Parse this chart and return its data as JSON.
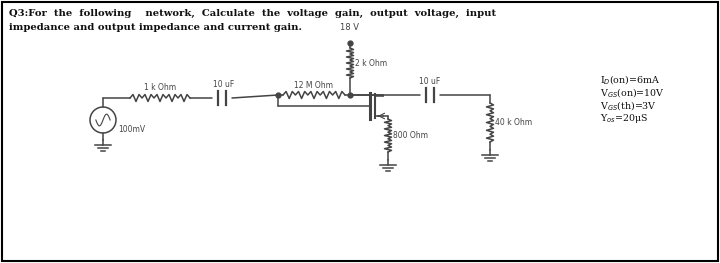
{
  "title_line1": "Q3:For  the  following    network,  Calculate  the  voltage  gain,  output  voltage,  input",
  "title_line2": "impedance and output impedance and current gain.",
  "bg_color": "#ffffff",
  "border_color": "#000000",
  "circuit_color": "#555555",
  "text_color": "#000000",
  "params_display": [
    "I$_D$(on)=6mA",
    "V$_{GS}$(on)=10V",
    "V$_{GS}$(th)=3V",
    "Y$_{os}$=20μS"
  ],
  "vdd_label": "18 V",
  "rd_label": "2 k Ohm",
  "r2_label": "12 M Ohm",
  "c2_label": "10 uF",
  "rl_label": "40 k Ohm",
  "c1_label": "10 uF",
  "r1_label": "1 k Ohm",
  "rs_label": "800 Ohm",
  "vs_label": "100mV"
}
